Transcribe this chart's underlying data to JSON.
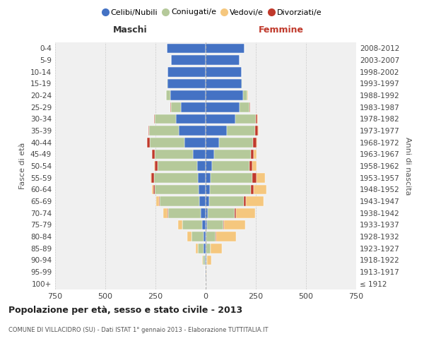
{
  "age_groups": [
    "100+",
    "95-99",
    "90-94",
    "85-89",
    "80-84",
    "75-79",
    "70-74",
    "65-69",
    "60-64",
    "55-59",
    "50-54",
    "45-49",
    "40-44",
    "35-39",
    "30-34",
    "25-29",
    "20-24",
    "15-19",
    "10-14",
    "5-9",
    "0-4"
  ],
  "birth_years": [
    "≤ 1912",
    "1913-1917",
    "1918-1922",
    "1923-1927",
    "1928-1932",
    "1933-1937",
    "1938-1942",
    "1943-1947",
    "1948-1952",
    "1953-1957",
    "1958-1962",
    "1963-1967",
    "1968-1972",
    "1973-1977",
    "1978-1982",
    "1983-1987",
    "1988-1992",
    "1993-1997",
    "1998-2002",
    "2003-2007",
    "2008-2012"
  ],
  "maschi_celibi": [
    1,
    2,
    5,
    10,
    12,
    18,
    25,
    30,
    35,
    38,
    42,
    65,
    105,
    135,
    148,
    122,
    175,
    190,
    190,
    172,
    195
  ],
  "maschi_coniugati": [
    0,
    0,
    8,
    28,
    58,
    98,
    162,
    198,
    218,
    218,
    198,
    188,
    172,
    145,
    105,
    52,
    22,
    5,
    0,
    0,
    0
  ],
  "maschi_vedovi": [
    0,
    0,
    5,
    12,
    22,
    22,
    20,
    12,
    6,
    4,
    4,
    2,
    0,
    0,
    0,
    0,
    0,
    0,
    0,
    0,
    0
  ],
  "maschi_divorziati": [
    0,
    0,
    0,
    0,
    0,
    0,
    4,
    6,
    9,
    14,
    14,
    14,
    14,
    6,
    4,
    2,
    0,
    0,
    0,
    0,
    0
  ],
  "femmine_nubili": [
    0,
    1,
    2,
    3,
    5,
    8,
    12,
    18,
    22,
    25,
    32,
    42,
    68,
    105,
    148,
    168,
    188,
    178,
    178,
    168,
    192
  ],
  "femmine_coniugate": [
    0,
    0,
    5,
    20,
    45,
    80,
    132,
    172,
    202,
    208,
    188,
    182,
    168,
    142,
    102,
    50,
    20,
    5,
    0,
    0,
    0
  ],
  "femmine_vedove": [
    0,
    3,
    20,
    58,
    98,
    105,
    98,
    88,
    62,
    42,
    20,
    12,
    6,
    6,
    4,
    2,
    2,
    0,
    0,
    0,
    0
  ],
  "femmine_divorziate": [
    0,
    0,
    0,
    0,
    2,
    4,
    6,
    10,
    16,
    22,
    14,
    16,
    16,
    12,
    6,
    3,
    0,
    0,
    0,
    0,
    0
  ],
  "color_celibi": "#4472c4",
  "color_coniugati": "#b5c99a",
  "color_vedovi": "#f5c77e",
  "color_divorziati": "#c0392b",
  "xlim": 750,
  "xticks": [
    -750,
    -500,
    -250,
    0,
    250,
    500,
    750
  ],
  "title": "Popolazione per età, sesso e stato civile - 2013",
  "subtitle": "COMUNE DI VILLACIDRO (SU) - Dati ISTAT 1° gennaio 2013 - Elaborazione TUTTITALIA.IT",
  "ylabel_left": "Fasce di età",
  "ylabel_right": "Anni di nascita",
  "label_maschi": "Maschi",
  "label_femmine": "Femmine",
  "legend_labels": [
    "Celibi/Nubili",
    "Coniugati/e",
    "Vedovi/e",
    "Divorziati/e"
  ],
  "bg_color": "#f0f0f0"
}
